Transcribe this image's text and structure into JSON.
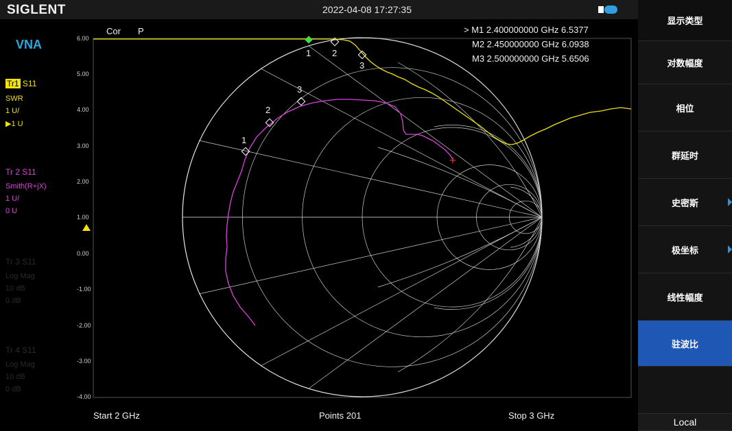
{
  "header": {
    "brand": "SIGLENT",
    "datetime": "2022-04-08 17:27:35"
  },
  "left": {
    "mode": "VNA",
    "traces": [
      {
        "tag": "Tr1",
        "param": "S11",
        "format": "SWR",
        "scale": "1 U/",
        "ref": "▶1 U"
      },
      {
        "tag": "Tr 2",
        "param": "S11",
        "format": "Smith(R+jX)",
        "scale": "1 U/",
        "ref": "0 U"
      },
      {
        "tag": "Tr 3",
        "param": "S11",
        "format": "Log Mag",
        "scale": "10 dB",
        "ref": "0 dB"
      },
      {
        "tag": "Tr 4",
        "param": "S11",
        "format": "Log Mag",
        "scale": "10 dB",
        "ref": "0 dB"
      }
    ]
  },
  "plot": {
    "cor": "Cor",
    "p": "P",
    "yticks": [
      "6.00",
      "5.00",
      "4.00",
      "3.00",
      "2.00",
      "1.00",
      "0.00",
      "-1.00",
      "-2.00",
      "-3.00",
      "-4.00"
    ],
    "markers": [
      {
        "row": "> M1  2.400000000 GHz 6.5377"
      },
      {
        "row": "M2  2.450000000 GHz 6.0938"
      },
      {
        "row": "M3  2.500000000 GHz 5.6506"
      }
    ],
    "marker_nums": [
      "1",
      "2",
      "3"
    ],
    "start": "Start  2 GHz",
    "points": "Points  201",
    "stop": "Stop  3 GHz"
  },
  "sidebar": {
    "items": [
      "显示类型",
      "对数幅度",
      "相位",
      "群延时",
      "史密斯",
      "极坐标",
      "线性幅度",
      "驻波比",
      "",
      "Local"
    ],
    "active": "驻波比"
  },
  "colors": {
    "trace1": "#f2e20c",
    "trace2": "#e040e0",
    "accent": "#1f57b5"
  }
}
